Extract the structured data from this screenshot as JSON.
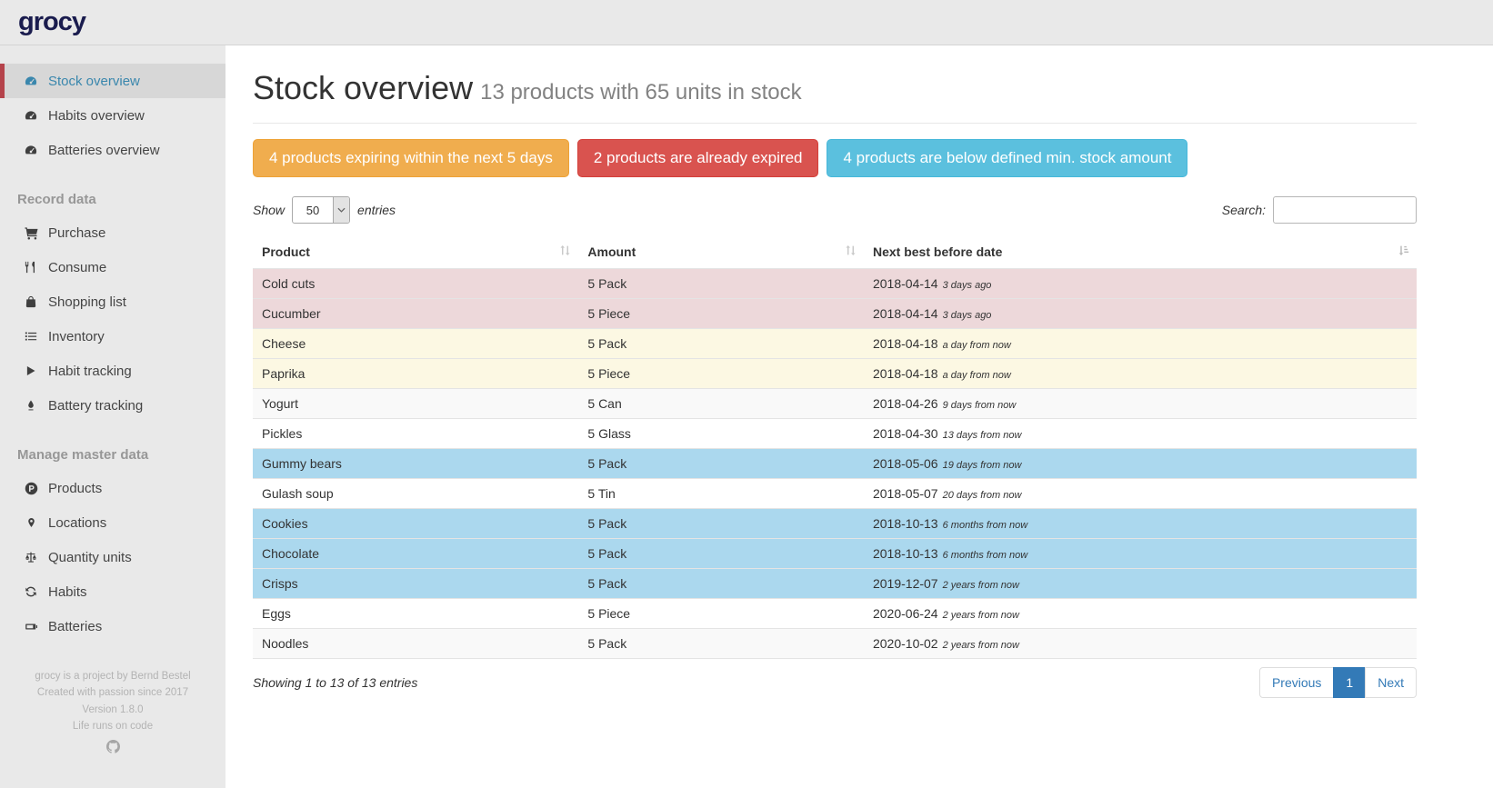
{
  "app": {
    "logo_text": "grocy"
  },
  "sidebar": {
    "sections": [
      {
        "header": null,
        "items": [
          {
            "id": "stock-overview",
            "label": "Stock overview",
            "icon": "tachometer-icon",
            "active": true
          },
          {
            "id": "habits-overview",
            "label": "Habits overview",
            "icon": "tachometer-icon",
            "active": false
          },
          {
            "id": "batteries-overview",
            "label": "Batteries overview",
            "icon": "tachometer-icon",
            "active": false
          }
        ]
      },
      {
        "header": "Record data",
        "items": [
          {
            "id": "purchase",
            "label": "Purchase",
            "icon": "shopping-cart-icon",
            "active": false
          },
          {
            "id": "consume",
            "label": "Consume",
            "icon": "utensils-icon",
            "active": false
          },
          {
            "id": "shopping-list",
            "label": "Shopping list",
            "icon": "shopping-bag-icon",
            "active": false
          },
          {
            "id": "inventory",
            "label": "Inventory",
            "icon": "list-icon",
            "active": false
          },
          {
            "id": "habit-tracking",
            "label": "Habit tracking",
            "icon": "play-icon",
            "active": false
          },
          {
            "id": "battery-tracking",
            "label": "Battery tracking",
            "icon": "droplet-icon",
            "active": false
          }
        ]
      },
      {
        "header": "Manage master data",
        "items": [
          {
            "id": "products",
            "label": "Products",
            "icon": "product-circle-icon",
            "active": false
          },
          {
            "id": "locations",
            "label": "Locations",
            "icon": "map-marker-icon",
            "active": false
          },
          {
            "id": "quantity-units",
            "label": "Quantity units",
            "icon": "balance-scale-icon",
            "active": false
          },
          {
            "id": "habits",
            "label": "Habits",
            "icon": "sync-icon",
            "active": false
          },
          {
            "id": "batteries",
            "label": "Batteries",
            "icon": "battery-icon",
            "active": false
          }
        ]
      }
    ],
    "footer_lines": [
      "grocy is a project by Bernd Bestel",
      "Created with passion since 2017",
      "Version 1.8.0",
      "Life runs on code"
    ]
  },
  "header": {
    "title": "Stock overview",
    "subtitle": "13 products with 65 units in stock"
  },
  "alerts": [
    {
      "id": "expiring-soon-button",
      "label": "4 products expiring within the next 5 days",
      "bg": "#f0ad4e",
      "border": "#eea236"
    },
    {
      "id": "expired-button",
      "label": "2 products are already expired",
      "bg": "#d9534f",
      "border": "#d43f3a"
    },
    {
      "id": "below-min-button",
      "label": "4 products are below defined min. stock amount",
      "bg": "#5bc0de",
      "border": "#46b8da"
    }
  ],
  "controls": {
    "show_label": "Show",
    "page_length": "50",
    "entries_label": "entries",
    "search_label": "Search:",
    "search_value": ""
  },
  "table": {
    "columns": [
      "Product",
      "Amount",
      "Next best before date"
    ],
    "rows": [
      {
        "product": "Cold cuts",
        "amount": "5 Pack",
        "date": "2018-04-14",
        "note": "3 days ago",
        "status": "expired"
      },
      {
        "product": "Cucumber",
        "amount": "5 Piece",
        "date": "2018-04-14",
        "note": "3 days ago",
        "status": "expired"
      },
      {
        "product": "Cheese",
        "amount": "5 Pack",
        "date": "2018-04-18",
        "note": "a day from now",
        "status": "expiring"
      },
      {
        "product": "Paprika",
        "amount": "5 Piece",
        "date": "2018-04-18",
        "note": "a day from now",
        "status": "expiring"
      },
      {
        "product": "Yogurt",
        "amount": "5 Can",
        "date": "2018-04-26",
        "note": "9 days from now",
        "status": "ok"
      },
      {
        "product": "Pickles",
        "amount": "5 Glass",
        "date": "2018-04-30",
        "note": "13 days from now",
        "status": "ok"
      },
      {
        "product": "Gummy bears",
        "amount": "5 Pack",
        "date": "2018-05-06",
        "note": "19 days from now",
        "status": "below-min"
      },
      {
        "product": "Gulash soup",
        "amount": "5 Tin",
        "date": "2018-05-07",
        "note": "20 days from now",
        "status": "ok"
      },
      {
        "product": "Cookies",
        "amount": "5 Pack",
        "date": "2018-10-13",
        "note": "6 months from now",
        "status": "below-min"
      },
      {
        "product": "Chocolate",
        "amount": "5 Pack",
        "date": "2018-10-13",
        "note": "6 months from now",
        "status": "below-min"
      },
      {
        "product": "Crisps",
        "amount": "5 Pack",
        "date": "2019-12-07",
        "note": "2 years from now",
        "status": "below-min"
      },
      {
        "product": "Eggs",
        "amount": "5 Piece",
        "date": "2020-06-24",
        "note": "2 years from now",
        "status": "ok"
      },
      {
        "product": "Noodles",
        "amount": "5 Pack",
        "date": "2020-10-02",
        "note": "2 years from now",
        "status": "ok"
      }
    ]
  },
  "table_footer": {
    "showing_info": "Showing 1 to 13 of 13 entries",
    "pagination": {
      "previous_label": "Previous",
      "page_label": "1",
      "next_label": "Next"
    }
  }
}
